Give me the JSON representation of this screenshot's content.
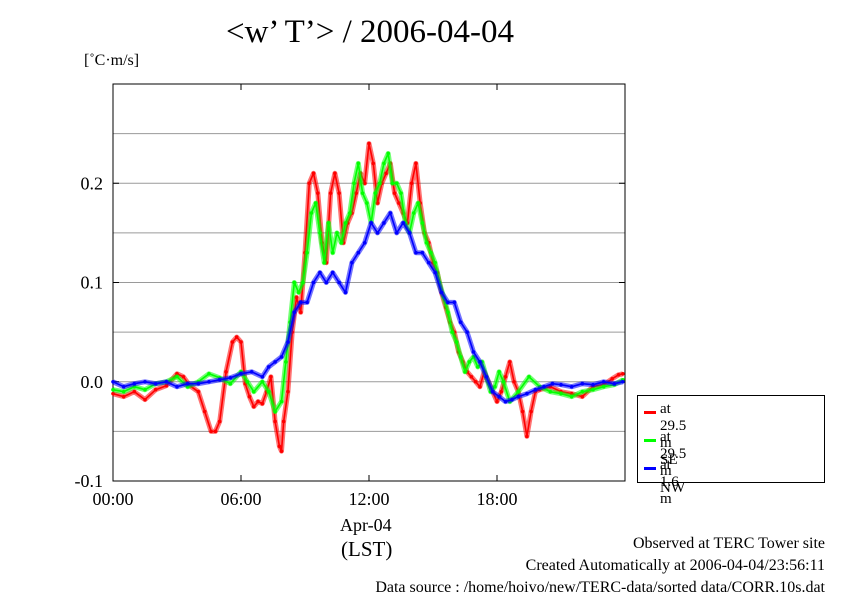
{
  "chart_data": {
    "type": "line",
    "title": "<w’ T’> / 2006-04-04",
    "ylabel": "[˚C·m/s]",
    "xlabel": "(LST)",
    "date_label": "Apr-04",
    "x_unit": "hours",
    "xlim": [
      0,
      24
    ],
    "ylim": [
      -0.1,
      0.3
    ],
    "x_ticks": [
      {
        "value": 0,
        "label": "00:00"
      },
      {
        "value": 6,
        "label": "06:00"
      },
      {
        "value": 12,
        "label": "12:00"
      },
      {
        "value": 18,
        "label": "18:00"
      }
    ],
    "y_ticks": [
      {
        "value": -0.1,
        "label": "-0.1"
      },
      {
        "value": 0.0,
        "label": "0.0"
      },
      {
        "value": 0.1,
        "label": "0.1"
      },
      {
        "value": 0.2,
        "label": "0.2"
      }
    ],
    "gridlines_y": [
      -0.05,
      0.0,
      0.05,
      0.1,
      0.15,
      0.2,
      0.25
    ],
    "grid": true,
    "legend_position": "outside-right-bottom",
    "series": [
      {
        "name": "at 29.5 m SE",
        "color": "#ff0000",
        "x": [
          0.0,
          0.5,
          1.0,
          1.5,
          2.0,
          2.5,
          3.0,
          3.3,
          3.6,
          4.0,
          4.3,
          4.6,
          4.8,
          5.0,
          5.3,
          5.6,
          5.8,
          6.0,
          6.2,
          6.4,
          6.6,
          6.8,
          7.0,
          7.2,
          7.4,
          7.6,
          7.8,
          7.9,
          8.0,
          8.2,
          8.4,
          8.6,
          8.8,
          9.0,
          9.2,
          9.4,
          9.6,
          9.8,
          10.0,
          10.2,
          10.4,
          10.6,
          10.8,
          11.0,
          11.2,
          11.4,
          11.6,
          11.8,
          12.0,
          12.2,
          12.4,
          12.6,
          12.8,
          13.0,
          13.2,
          13.4,
          13.6,
          13.8,
          14.0,
          14.2,
          14.4,
          14.6,
          14.8,
          15.0,
          15.2,
          15.4,
          15.6,
          15.8,
          16.0,
          16.2,
          16.4,
          16.6,
          16.8,
          17.0,
          17.2,
          17.4,
          17.6,
          17.8,
          18.0,
          18.2,
          18.4,
          18.6,
          18.8,
          19.0,
          19.2,
          19.4,
          19.6,
          19.8,
          20.0,
          20.5,
          21.0,
          21.5,
          22.0,
          22.5,
          23.0,
          23.4,
          23.7,
          23.9
        ],
        "y": [
          -0.012,
          -0.015,
          -0.01,
          -0.018,
          -0.008,
          -0.004,
          0.008,
          0.005,
          -0.004,
          -0.01,
          -0.03,
          -0.05,
          -0.05,
          -0.04,
          0.01,
          0.04,
          0.045,
          0.04,
          -0.002,
          -0.015,
          -0.025,
          -0.02,
          -0.022,
          -0.01,
          0.005,
          -0.04,
          -0.065,
          -0.07,
          -0.04,
          -0.01,
          0.05,
          0.085,
          0.07,
          0.13,
          0.2,
          0.21,
          0.19,
          0.14,
          0.12,
          0.19,
          0.21,
          0.19,
          0.14,
          0.16,
          0.17,
          0.19,
          0.21,
          0.2,
          0.24,
          0.22,
          0.18,
          0.2,
          0.21,
          0.22,
          0.19,
          0.18,
          0.17,
          0.16,
          0.2,
          0.22,
          0.18,
          0.15,
          0.14,
          0.12,
          0.11,
          0.09,
          0.075,
          0.06,
          0.05,
          0.03,
          0.02,
          0.01,
          0.005,
          0.0,
          -0.005,
          0.01,
          0.0,
          -0.01,
          -0.02,
          -0.01,
          0.005,
          0.02,
          0.0,
          -0.01,
          -0.03,
          -0.055,
          -0.03,
          -0.01,
          -0.008,
          -0.005,
          -0.01,
          -0.012,
          -0.015,
          -0.005,
          -0.003,
          0.003,
          0.007,
          0.008
        ]
      },
      {
        "name": "at 29.5 m NW",
        "color": "#00ff00",
        "x": [
          0.0,
          0.5,
          1.0,
          1.5,
          2.0,
          2.5,
          3.0,
          3.5,
          4.0,
          4.5,
          5.0,
          5.5,
          6.0,
          6.3,
          6.6,
          7.0,
          7.3,
          7.6,
          7.9,
          8.1,
          8.3,
          8.5,
          8.7,
          8.9,
          9.1,
          9.3,
          9.5,
          9.7,
          9.9,
          10.1,
          10.3,
          10.5,
          10.7,
          10.9,
          11.1,
          11.3,
          11.5,
          11.7,
          11.9,
          12.1,
          12.3,
          12.5,
          12.7,
          12.9,
          13.1,
          13.3,
          13.5,
          13.7,
          13.9,
          14.1,
          14.3,
          14.5,
          14.7,
          14.9,
          15.1,
          15.3,
          15.5,
          15.7,
          15.9,
          16.1,
          16.3,
          16.5,
          16.7,
          16.9,
          17.1,
          17.3,
          17.5,
          17.7,
          17.9,
          18.1,
          18.3,
          18.6,
          19.0,
          19.5,
          20.0,
          20.5,
          21.0,
          21.5,
          22.0,
          22.5,
          23.0,
          23.5,
          23.9
        ],
        "y": [
          -0.008,
          -0.01,
          -0.005,
          -0.008,
          -0.002,
          0.0,
          0.005,
          -0.005,
          0.0,
          0.008,
          0.004,
          -0.002,
          0.01,
          0.0,
          -0.01,
          0.0,
          -0.01,
          -0.03,
          -0.02,
          0.02,
          0.06,
          0.1,
          0.09,
          0.1,
          0.13,
          0.17,
          0.18,
          0.15,
          0.12,
          0.16,
          0.13,
          0.15,
          0.14,
          0.16,
          0.17,
          0.2,
          0.22,
          0.19,
          0.18,
          0.16,
          0.19,
          0.2,
          0.22,
          0.23,
          0.2,
          0.2,
          0.19,
          0.16,
          0.15,
          0.17,
          0.18,
          0.16,
          0.14,
          0.13,
          0.12,
          0.1,
          0.085,
          0.07,
          0.05,
          0.04,
          0.025,
          0.01,
          0.02,
          0.025,
          0.015,
          0.02,
          0.005,
          -0.01,
          -0.005,
          0.01,
          0.0,
          -0.02,
          -0.01,
          0.005,
          -0.005,
          -0.01,
          -0.012,
          -0.015,
          -0.01,
          -0.008,
          -0.005,
          -0.003,
          0.002
        ]
      },
      {
        "name": "at 1.6 m",
        "color": "#0000ff",
        "x": [
          0.0,
          0.5,
          1.0,
          1.5,
          2.0,
          2.5,
          3.0,
          3.5,
          4.0,
          4.5,
          5.0,
          5.5,
          6.0,
          6.5,
          7.0,
          7.3,
          7.6,
          7.9,
          8.2,
          8.5,
          8.8,
          9.1,
          9.4,
          9.7,
          10.0,
          10.3,
          10.6,
          10.9,
          11.2,
          11.5,
          11.8,
          12.1,
          12.4,
          12.7,
          13.0,
          13.3,
          13.6,
          13.9,
          14.2,
          14.5,
          14.8,
          15.1,
          15.4,
          15.7,
          16.0,
          16.3,
          16.6,
          16.9,
          17.2,
          17.5,
          17.8,
          18.1,
          18.4,
          18.7,
          19.0,
          19.4,
          19.8,
          20.2,
          20.6,
          21.0,
          21.5,
          22.0,
          22.5,
          23.0,
          23.5,
          23.9
        ],
        "y": [
          0.0,
          -0.005,
          -0.002,
          0.0,
          -0.002,
          0.0,
          -0.005,
          -0.002,
          -0.002,
          0.0,
          0.002,
          0.004,
          0.008,
          0.01,
          0.005,
          0.015,
          0.02,
          0.025,
          0.04,
          0.07,
          0.08,
          0.08,
          0.1,
          0.11,
          0.1,
          0.11,
          0.1,
          0.09,
          0.12,
          0.13,
          0.14,
          0.16,
          0.15,
          0.16,
          0.17,
          0.15,
          0.16,
          0.15,
          0.13,
          0.13,
          0.12,
          0.11,
          0.09,
          0.08,
          0.08,
          0.06,
          0.05,
          0.03,
          0.02,
          0.005,
          -0.01,
          -0.015,
          -0.02,
          -0.018,
          -0.015,
          -0.012,
          -0.008,
          -0.005,
          -0.002,
          -0.003,
          -0.005,
          -0.002,
          -0.003,
          0.0,
          -0.002,
          0.0
        ]
      }
    ]
  },
  "footer": {
    "observed": "Observed at TERC Tower site",
    "created": "Created Automatically at 2006-04-04/23:56:11",
    "source": "Data source : /home/hoivo/new/TERC-data/sorted  data/CORR.10s.dat"
  }
}
